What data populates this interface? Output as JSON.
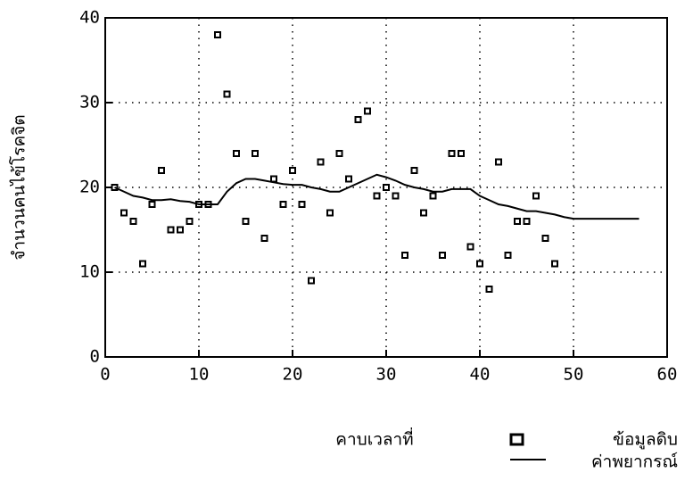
{
  "chart_data": {
    "type": "scatter",
    "x_label": "คาบเวลาที่",
    "y_label": "จำนวนคนไข้โรคจิต",
    "xlim": [
      0,
      60
    ],
    "xticks": [
      0,
      10,
      20,
      30,
      40,
      50,
      60
    ],
    "ylim": [
      0,
      40
    ],
    "yticks": [
      0,
      10,
      20,
      30,
      40
    ],
    "grid": true,
    "series": [
      {
        "name": "ข้อมูลดิบ",
        "color": "#000000",
        "style": "markers",
        "x": [
          1,
          2,
          3,
          4,
          5,
          6,
          7,
          8,
          9,
          10,
          11,
          12,
          13,
          14,
          15,
          16,
          17,
          18,
          19,
          20,
          21,
          22,
          23,
          24,
          25,
          26,
          27,
          28,
          29,
          30,
          31,
          32,
          33,
          34,
          35,
          36,
          37,
          38,
          39,
          40,
          41,
          42,
          43,
          44,
          45,
          46,
          47,
          48
        ],
        "values": [
          20,
          17,
          16,
          11,
          18,
          22,
          15,
          15,
          16,
          18,
          18,
          38,
          31,
          24,
          16,
          24,
          14,
          21,
          18,
          22,
          18,
          9,
          23,
          17,
          24,
          21,
          28,
          29,
          19,
          20,
          19,
          12,
          22,
          17,
          19,
          12,
          24,
          24,
          13,
          11,
          8,
          23,
          12,
          16,
          16,
          19,
          14,
          11
        ]
      },
      {
        "name": "ค่าพยากรณ์",
        "color": "#000000",
        "style": "line",
        "x": [
          1,
          2,
          3,
          4,
          5,
          6,
          7,
          8,
          9,
          10,
          11,
          12,
          13,
          14,
          15,
          16,
          17,
          18,
          19,
          20,
          21,
          22,
          23,
          24,
          25,
          26,
          27,
          28,
          29,
          30,
          31,
          32,
          33,
          34,
          35,
          36,
          37,
          38,
          39,
          40,
          41,
          42,
          43,
          44,
          45,
          46,
          47,
          48,
          49,
          50,
          51,
          52,
          53,
          54,
          55,
          56,
          57
        ],
        "values": [
          20,
          19.5,
          19,
          18.8,
          18.5,
          18.5,
          18.6,
          18.4,
          18.3,
          18,
          18,
          18,
          19.5,
          20.5,
          21,
          21,
          20.8,
          20.6,
          20.4,
          20.3,
          20.3,
          20,
          19.8,
          19.5,
          19.5,
          20,
          20.5,
          21,
          21.5,
          21.2,
          20.8,
          20.3,
          20,
          19.8,
          19.5,
          19.5,
          19.8,
          19.8,
          19.8,
          19,
          18.5,
          18,
          17.8,
          17.5,
          17.2,
          17.2,
          17,
          16.8,
          16.5,
          16.3,
          16.3,
          16.3,
          16.3,
          16.3,
          16.3,
          16.3,
          16.3
        ]
      }
    ]
  }
}
